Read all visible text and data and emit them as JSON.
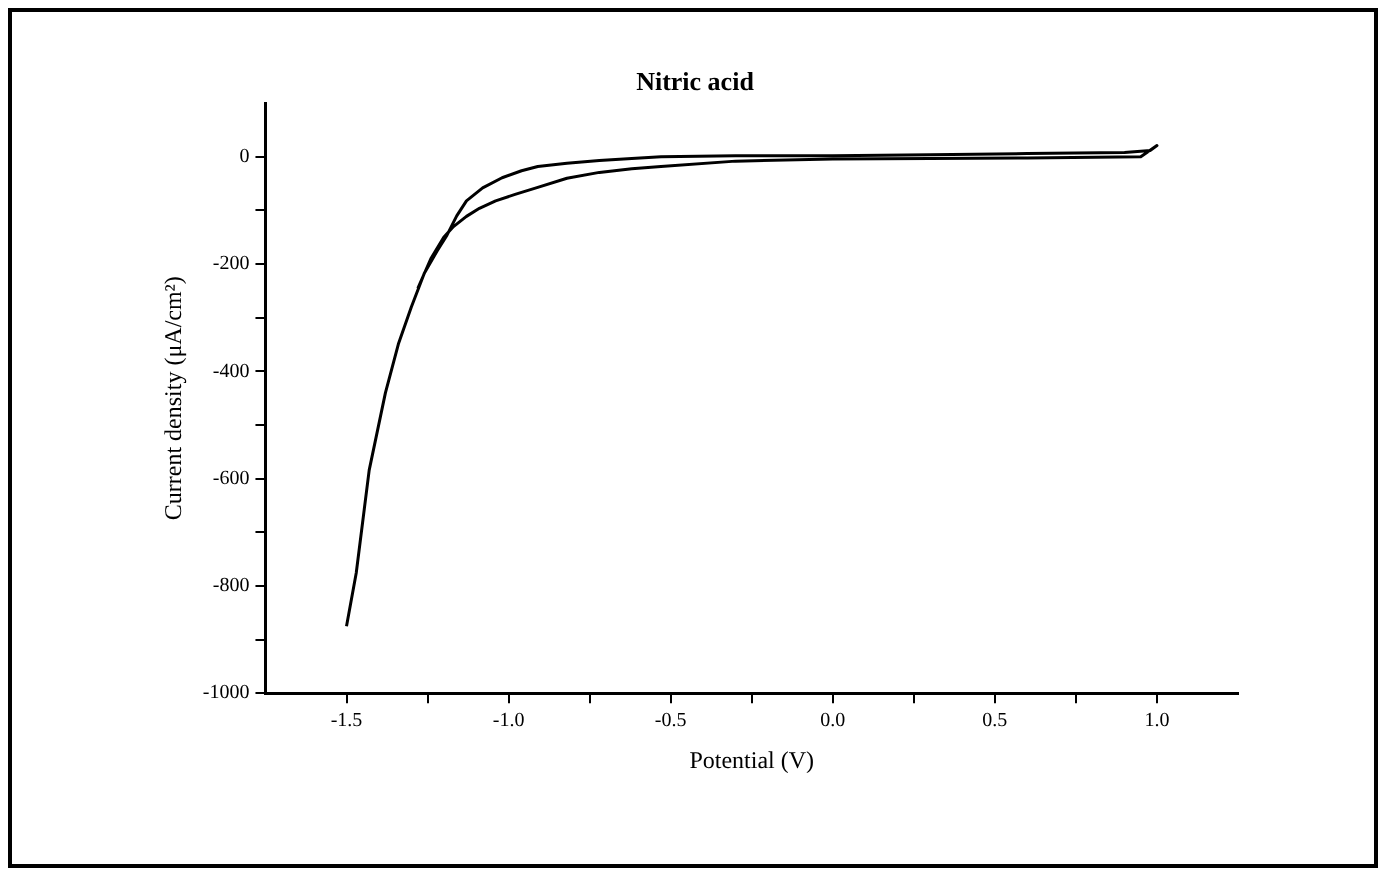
{
  "chart_data": {
    "type": "line",
    "title": "Nitric acid",
    "xlabel": "Potential (V)",
    "ylabel": "Current density (μA/cm²)",
    "xlim": [
      -1.75,
      1.25
    ],
    "ylim": [
      -1000,
      100
    ],
    "xticks": [
      {
        "value": -1.5,
        "label": "-1.5"
      },
      {
        "value": -1.25,
        "label": null
      },
      {
        "value": -1.0,
        "label": "-1.0"
      },
      {
        "value": -0.75,
        "label": null
      },
      {
        "value": -0.5,
        "label": "-0.5"
      },
      {
        "value": -0.25,
        "label": null
      },
      {
        "value": 0,
        "label": "0.0"
      },
      {
        "value": 0.25,
        "label": null
      },
      {
        "value": 0.5,
        "label": "0.5"
      },
      {
        "value": 0.75,
        "label": null
      },
      {
        "value": 1.0,
        "label": "1.0"
      }
    ],
    "yticks": [
      0,
      {
        "value": -100,
        "label": null
      },
      -200,
      {
        "value": -300,
        "label": null
      },
      -400,
      {
        "value": -500,
        "label": null
      },
      -600,
      {
        "value": -700,
        "label": null
      },
      -800,
      {
        "value": -900,
        "label": null
      },
      -1000
    ],
    "grid": false,
    "legend": false,
    "marker": "none",
    "line_style": "solid",
    "series": [
      {
        "color": "#000000",
        "x": [
          -1.5,
          -1.47,
          -1.43,
          -1.38,
          -1.34,
          -1.3,
          -1.26,
          -1.22,
          -1.19,
          -1.16,
          -1.13,
          -1.08,
          -1.02,
          -0.96,
          -0.91,
          -0.82,
          -0.72,
          -0.62,
          -0.53,
          -0.3,
          0.0,
          0.3,
          0.6,
          0.9,
          0.98,
          1.0,
          0.95,
          0.6,
          0.3,
          0.0,
          -0.3,
          -0.53,
          -0.62,
          -0.72,
          -0.82,
          -0.91,
          -0.98,
          -1.04,
          -1.09,
          -1.13,
          -1.17,
          -1.2,
          -1.24,
          -1.28
        ],
        "values": [
          -875,
          -776,
          -584,
          -440,
          -349,
          -280,
          -217,
          -175,
          -146,
          -110,
          -82,
          -58,
          -39,
          -26,
          -18,
          -12,
          -7,
          -3,
          0,
          2,
          2,
          4,
          6,
          8,
          12,
          21,
          0,
          -2,
          -3,
          -4,
          -8,
          -18,
          -22,
          -29,
          -40,
          -57,
          -70,
          -82,
          -96,
          -111,
          -130,
          -150,
          -190,
          -245
        ]
      }
    ]
  }
}
